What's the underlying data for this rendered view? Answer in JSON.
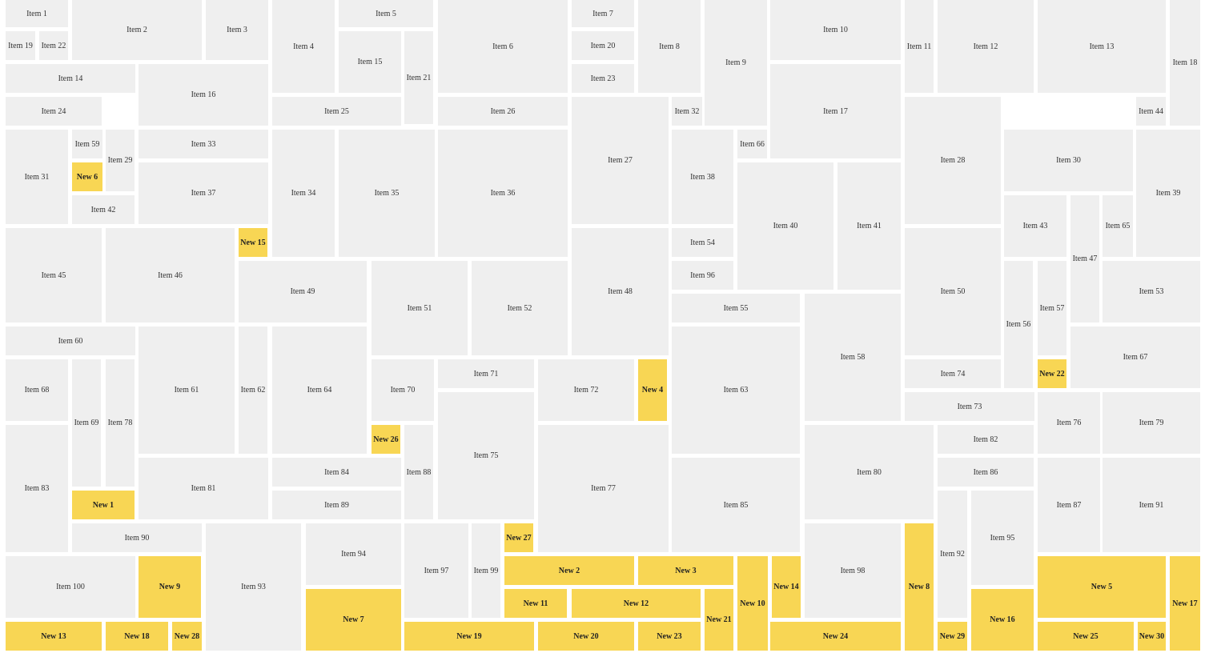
{
  "colors": {
    "background": "#ffffff",
    "item": "#efefef",
    "new_item": "#f8d654",
    "text": "#333333"
  },
  "tiles": [
    {
      "label": "Item 1",
      "kind": "item"
    },
    {
      "label": "Item 2",
      "kind": "item"
    },
    {
      "label": "Item 3",
      "kind": "item"
    },
    {
      "label": "Item 4",
      "kind": "item"
    },
    {
      "label": "Item 5",
      "kind": "item"
    },
    {
      "label": "Item 6",
      "kind": "item"
    },
    {
      "label": "Item 7",
      "kind": "item"
    },
    {
      "label": "Item 8",
      "kind": "item"
    },
    {
      "label": "Item 9",
      "kind": "item"
    },
    {
      "label": "Item 10",
      "kind": "item"
    },
    {
      "label": "Item 11",
      "kind": "item"
    },
    {
      "label": "Item 12",
      "kind": "item"
    },
    {
      "label": "Item 13",
      "kind": "item"
    },
    {
      "label": "Item 18",
      "kind": "item"
    },
    {
      "label": "Item 19",
      "kind": "item"
    },
    {
      "label": "Item 22",
      "kind": "item"
    },
    {
      "label": "Item 15",
      "kind": "item"
    },
    {
      "label": "Item 21",
      "kind": "item"
    },
    {
      "label": "Item 20",
      "kind": "item"
    },
    {
      "label": "Item 23",
      "kind": "item"
    },
    {
      "label": "Item 14",
      "kind": "item"
    },
    {
      "label": "Item 16",
      "kind": "item"
    },
    {
      "label": "Item 17",
      "kind": "item"
    },
    {
      "label": "Item 24",
      "kind": "item"
    },
    {
      "label": "Item 25",
      "kind": "item"
    },
    {
      "label": "Item 26",
      "kind": "item"
    },
    {
      "label": "Item 32",
      "kind": "item"
    },
    {
      "label": "Item 44",
      "kind": "item"
    },
    {
      "label": "Item 59",
      "kind": "item"
    },
    {
      "label": "Item 29",
      "kind": "item"
    },
    {
      "label": "Item 33",
      "kind": "item"
    },
    {
      "label": "Item 66",
      "kind": "item"
    },
    {
      "label": "Item 30",
      "kind": "item"
    },
    {
      "label": "Item 27",
      "kind": "item"
    },
    {
      "label": "Item 28",
      "kind": "item"
    },
    {
      "label": "Item 31",
      "kind": "item"
    },
    {
      "label": "New 6",
      "kind": "new"
    },
    {
      "label": "Item 38",
      "kind": "item"
    },
    {
      "label": "Item 37",
      "kind": "item"
    },
    {
      "label": "Item 34",
      "kind": "item"
    },
    {
      "label": "Item 35",
      "kind": "item"
    },
    {
      "label": "Item 36",
      "kind": "item"
    },
    {
      "label": "Item 39",
      "kind": "item"
    },
    {
      "label": "Item 42",
      "kind": "item"
    },
    {
      "label": "Item 40",
      "kind": "item"
    },
    {
      "label": "Item 41",
      "kind": "item"
    },
    {
      "label": "Item 43",
      "kind": "item"
    },
    {
      "label": "Item 65",
      "kind": "item"
    },
    {
      "label": "New 15",
      "kind": "new"
    },
    {
      "label": "Item 54",
      "kind": "item"
    },
    {
      "label": "Item 47",
      "kind": "item"
    },
    {
      "label": "Item 45",
      "kind": "item"
    },
    {
      "label": "Item 46",
      "kind": "item"
    },
    {
      "label": "Item 96",
      "kind": "item"
    },
    {
      "label": "Item 49",
      "kind": "item"
    },
    {
      "label": "Item 48",
      "kind": "item"
    },
    {
      "label": "Item 50",
      "kind": "item"
    },
    {
      "label": "Item 53",
      "kind": "item"
    },
    {
      "label": "Item 51",
      "kind": "item"
    },
    {
      "label": "Item 52",
      "kind": "item"
    },
    {
      "label": "Item 55",
      "kind": "item"
    },
    {
      "label": "Item 57",
      "kind": "item"
    },
    {
      "label": "Item 56",
      "kind": "item"
    },
    {
      "label": "Item 60",
      "kind": "item"
    },
    {
      "label": "Item 58",
      "kind": "item"
    },
    {
      "label": "Item 67",
      "kind": "item"
    },
    {
      "label": "Item 71",
      "kind": "item"
    },
    {
      "label": "Item 74",
      "kind": "item"
    },
    {
      "label": "New 22",
      "kind": "new"
    },
    {
      "label": "Item 68",
      "kind": "item"
    },
    {
      "label": "Item 61",
      "kind": "item"
    },
    {
      "label": "Item 62",
      "kind": "item"
    },
    {
      "label": "Item 64",
      "kind": "item"
    },
    {
      "label": "Item 70",
      "kind": "item"
    },
    {
      "label": "Item 72",
      "kind": "item"
    },
    {
      "label": "New 4",
      "kind": "new"
    },
    {
      "label": "Item 63",
      "kind": "item"
    },
    {
      "label": "Item 73",
      "kind": "item"
    },
    {
      "label": "Item 69",
      "kind": "item"
    },
    {
      "label": "Item 78",
      "kind": "item"
    },
    {
      "label": "Item 76",
      "kind": "item"
    },
    {
      "label": "Item 79",
      "kind": "item"
    },
    {
      "label": "New 26",
      "kind": "new"
    },
    {
      "label": "Item 82",
      "kind": "item"
    },
    {
      "label": "Item 75",
      "kind": "item"
    },
    {
      "label": "Item 84",
      "kind": "item"
    },
    {
      "label": "Item 88",
      "kind": "item"
    },
    {
      "label": "Item 80",
      "kind": "item"
    },
    {
      "label": "Item 86",
      "kind": "item"
    },
    {
      "label": "Item 83",
      "kind": "item"
    },
    {
      "label": "Item 81",
      "kind": "item"
    },
    {
      "label": "Item 77",
      "kind": "item"
    },
    {
      "label": "Item 85",
      "kind": "item"
    },
    {
      "label": "New 1",
      "kind": "new"
    },
    {
      "label": "Item 89",
      "kind": "item"
    },
    {
      "label": "Item 87",
      "kind": "item"
    },
    {
      "label": "Item 91",
      "kind": "item"
    },
    {
      "label": "Item 90",
      "kind": "item"
    },
    {
      "label": "Item 93",
      "kind": "item"
    },
    {
      "label": "Item 94",
      "kind": "item"
    },
    {
      "label": "Item 97",
      "kind": "item"
    },
    {
      "label": "Item 99",
      "kind": "item"
    },
    {
      "label": "New 27",
      "kind": "new"
    },
    {
      "label": "Item 95",
      "kind": "item"
    },
    {
      "label": "Item 98",
      "kind": "item"
    },
    {
      "label": "New 8",
      "kind": "new"
    },
    {
      "label": "Item 92",
      "kind": "item"
    },
    {
      "label": "Item 100",
      "kind": "item"
    },
    {
      "label": "New 9",
      "kind": "new"
    },
    {
      "label": "New 2",
      "kind": "new"
    },
    {
      "label": "New 3",
      "kind": "new"
    },
    {
      "label": "New 10",
      "kind": "new"
    },
    {
      "label": "New 14",
      "kind": "new"
    },
    {
      "label": "New 5",
      "kind": "new"
    },
    {
      "label": "New 17",
      "kind": "new"
    },
    {
      "label": "New 7",
      "kind": "new"
    },
    {
      "label": "New 11",
      "kind": "new"
    },
    {
      "label": "New 12",
      "kind": "new"
    },
    {
      "label": "New 21",
      "kind": "new"
    },
    {
      "label": "New 16",
      "kind": "new"
    },
    {
      "label": "New 13",
      "kind": "new"
    },
    {
      "label": "New 18",
      "kind": "new"
    },
    {
      "label": "New 28",
      "kind": "new"
    },
    {
      "label": "New 19",
      "kind": "new"
    },
    {
      "label": "New 20",
      "kind": "new"
    },
    {
      "label": "New 23",
      "kind": "new"
    },
    {
      "label": "New 24",
      "kind": "new"
    },
    {
      "label": "New 29",
      "kind": "new"
    },
    {
      "label": "New 25",
      "kind": "new"
    },
    {
      "label": "New 30",
      "kind": "new"
    }
  ]
}
